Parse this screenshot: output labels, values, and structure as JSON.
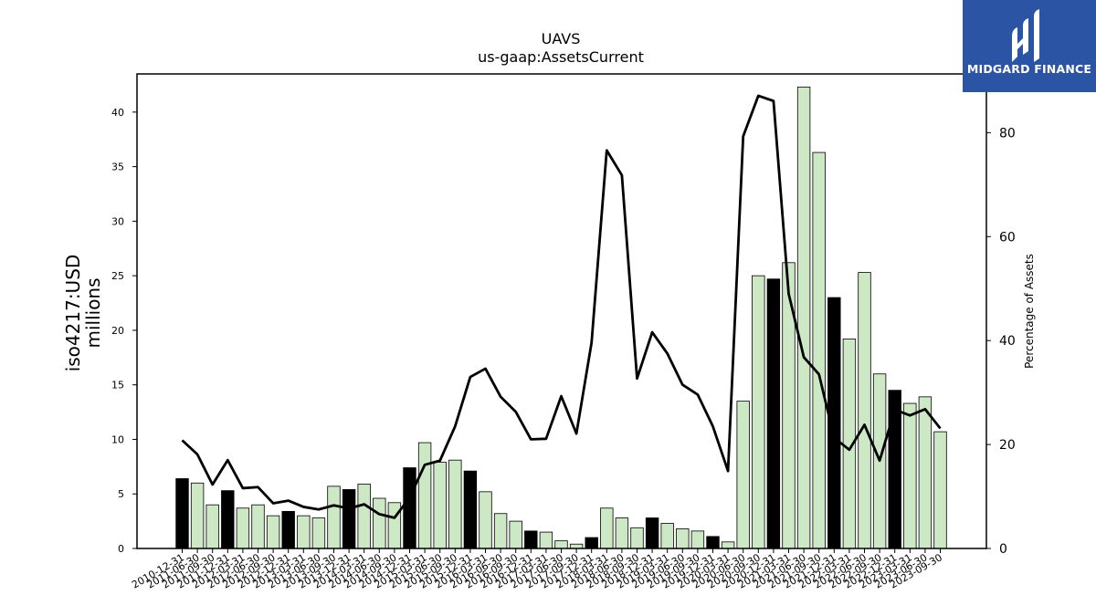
{
  "chart_data": {
    "type": "bar",
    "title": "UAVS",
    "subtitle": "us-gaap:AssetsCurrent",
    "ylabel_line1": "iso4217:USD",
    "ylabel_line2": "millions",
    "y2label": "Percentage of Assets",
    "ylim": [
      0,
      43.5
    ],
    "y2lim": [
      0,
      91.3
    ],
    "yticks": [
      0,
      5,
      10,
      15,
      20,
      25,
      30,
      35,
      40
    ],
    "y2ticks": [
      0,
      20,
      40,
      60,
      80
    ],
    "legend": "none",
    "grid": false,
    "bar_colors": {
      "q4": "#000000",
      "other": "#cce8c4"
    },
    "line_color": "#000000",
    "categories": [
      "2010-12-31",
      "2011-06-30",
      "2011-09-30",
      "2011-12-31",
      "2012-03-31",
      "2012-06-30",
      "2012-09-30",
      "2012-12-31",
      "2013-03-31",
      "2013-06-30",
      "2013-09-30",
      "2013-12-31",
      "2014-03-31",
      "2014-06-30",
      "2014-09-30",
      "2014-12-31",
      "2015-03-31",
      "2015-06-30",
      "2015-09-30",
      "2015-12-31",
      "2016-03-31",
      "2016-06-30",
      "2016-09-30",
      "2016-12-31",
      "2017-03-31",
      "2017-06-30",
      "2017-09-30",
      "2017-12-31",
      "2018-03-31",
      "2018-06-30",
      "2018-09-30",
      "2018-12-31",
      "2019-03-31",
      "2019-06-30",
      "2019-09-30",
      "2019-12-31",
      "2020-03-31",
      "2020-06-30",
      "2020-09-30",
      "2020-12-31",
      "2021-03-31",
      "2021-06-30",
      "2021-09-30",
      "2021-12-31",
      "2022-03-31",
      "2022-06-30",
      "2022-09-30",
      "2022-12-31",
      "2023-03-31",
      "2023-06-30",
      "2023-09-30"
    ],
    "series": [
      {
        "axis": "left",
        "kind": "bar",
        "values": [
          6.4,
          6.0,
          4.0,
          5.3,
          3.7,
          4.0,
          3.0,
          3.4,
          3.0,
          2.8,
          5.7,
          5.4,
          5.9,
          4.6,
          4.2,
          7.4,
          9.7,
          7.9,
          8.1,
          7.1,
          5.2,
          3.2,
          2.5,
          1.6,
          1.5,
          0.7,
          0.4,
          1.0,
          3.7,
          2.8,
          1.9,
          2.8,
          2.3,
          1.8,
          1.6,
          1.1,
          0.6,
          13.5,
          25.0,
          24.7,
          26.2,
          42.3,
          36.3,
          23.0,
          19.2,
          25.3,
          16.0,
          14.5,
          13.3,
          13.9,
          10.7
        ],
        "q4": [
          true,
          false,
          false,
          true,
          false,
          false,
          false,
          true,
          false,
          false,
          false,
          true,
          false,
          false,
          false,
          true,
          false,
          false,
          false,
          true,
          false,
          false,
          false,
          true,
          false,
          false,
          false,
          true,
          false,
          false,
          false,
          true,
          false,
          false,
          false,
          true,
          false,
          false,
          false,
          true,
          false,
          false,
          false,
          true,
          false,
          false,
          false,
          true,
          false,
          false,
          false
        ]
      },
      {
        "axis": "right",
        "kind": "line",
        "values": [
          20.8,
          18.1,
          12.3,
          17.0,
          11.6,
          11.8,
          8.7,
          9.2,
          8.0,
          7.5,
          8.3,
          7.7,
          8.5,
          6.6,
          5.9,
          9.8,
          16.1,
          16.9,
          23.5,
          33.0,
          34.6,
          29.2,
          26.3,
          21.0,
          21.1,
          29.3,
          22.1,
          39.6,
          76.6,
          71.8,
          32.7,
          41.6,
          37.5,
          31.5,
          29.6,
          23.5,
          14.9,
          79.3,
          87.1,
          86.1,
          49.0,
          36.8,
          33.5,
          21.3,
          19.0,
          23.8,
          16.9,
          26.7,
          25.6,
          26.8,
          23.1
        ]
      }
    ]
  },
  "logo": {
    "text": "MIDGARD FINANCE",
    "color": "#2b55a4"
  }
}
